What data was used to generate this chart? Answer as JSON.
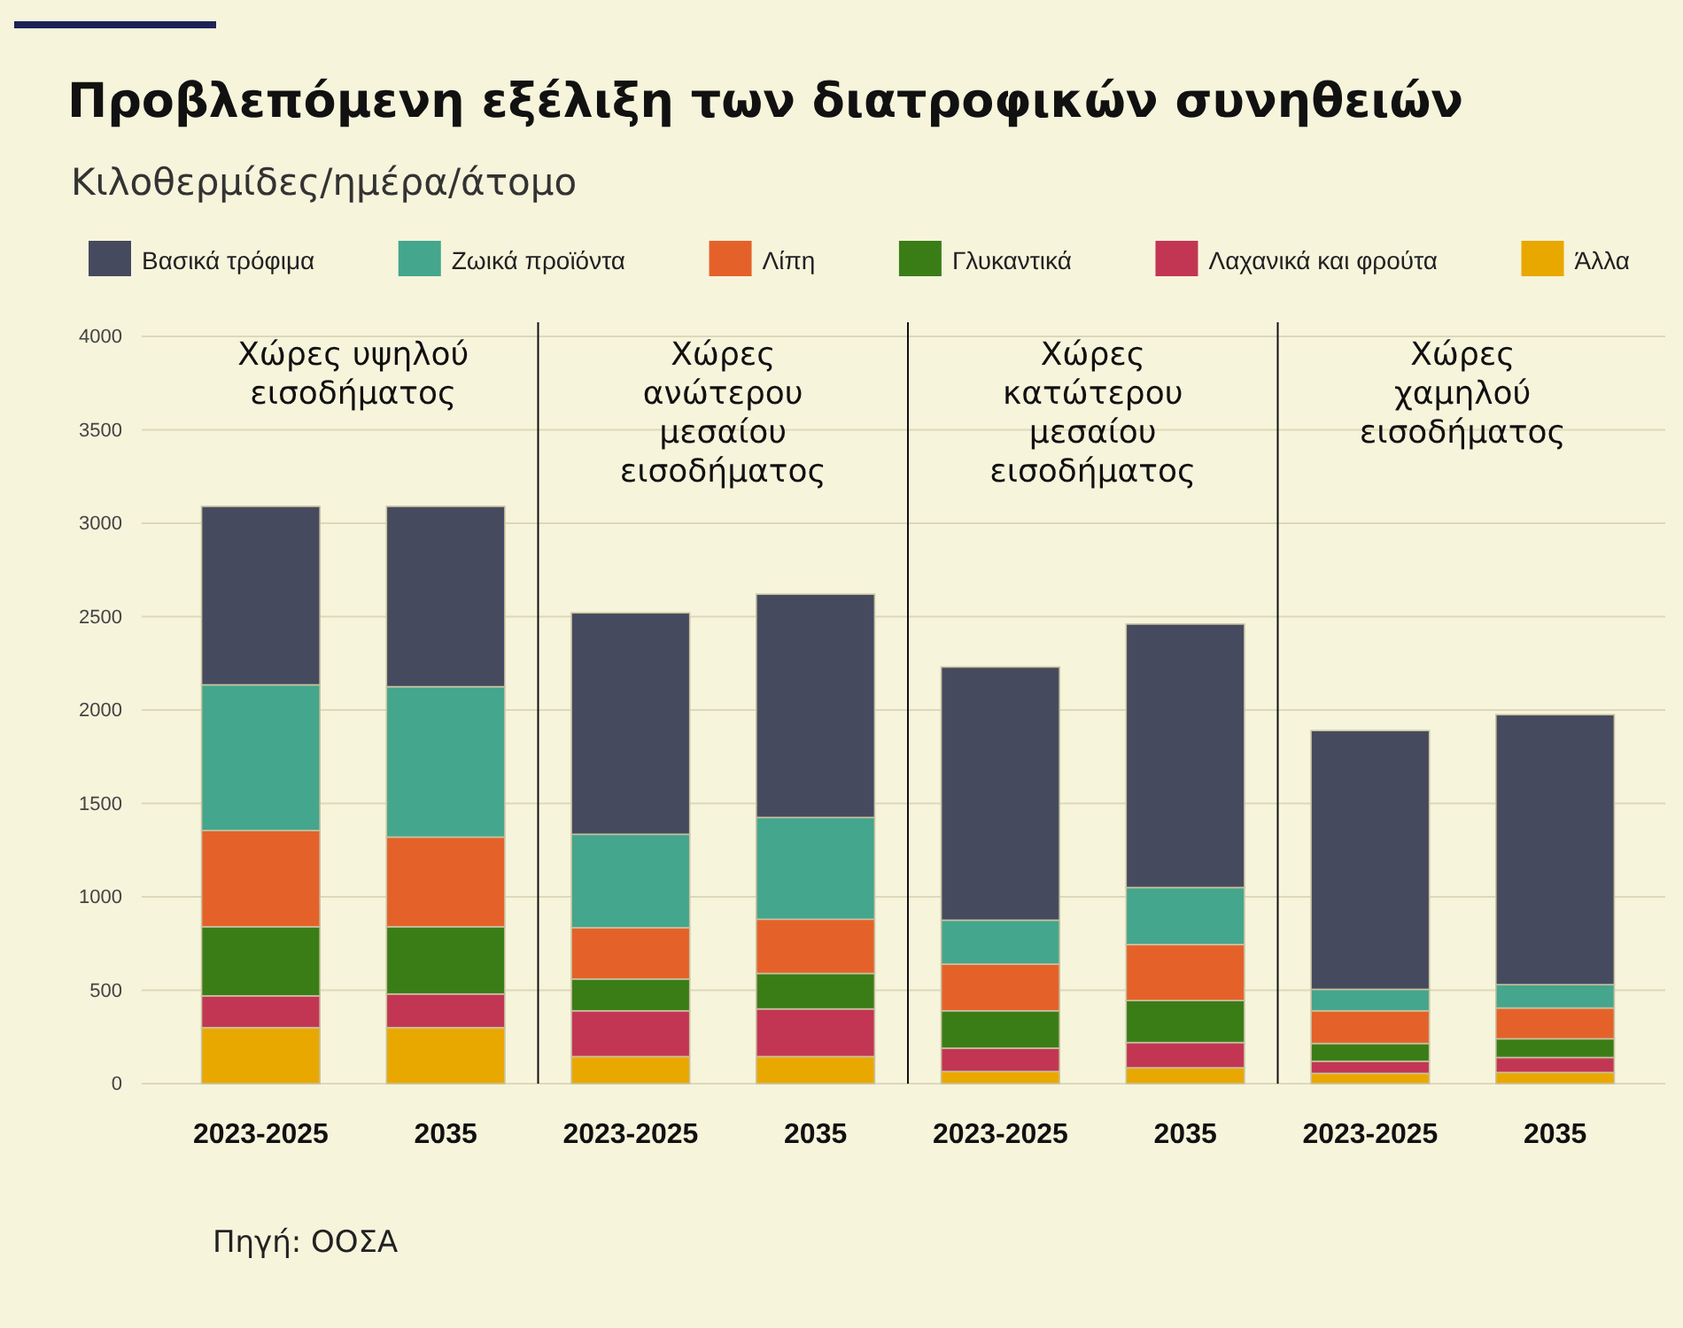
{
  "chart_data": {
    "type": "bar",
    "title": "Προβλεπόμενη εξέλιξη των διατροφικών συνηθειών",
    "subtitle": "Κιλοθερμίδες/ημέρα/άτομο",
    "categories": [
      "2023-2025",
      "2035",
      "2023-2025",
      "2035",
      "2023-2025",
      "2035",
      "2023-2025",
      "2035"
    ],
    "stacked": true,
    "series": [
      {
        "name": "Άλλα",
        "color": "#e9a800",
        "values": [
          300,
          300,
          145,
          145,
          65,
          85,
          55,
          60
        ]
      },
      {
        "name": "Λαχανικά και φρούτα",
        "color": "#c23654",
        "values": [
          170,
          180,
          245,
          255,
          125,
          135,
          65,
          80
        ]
      },
      {
        "name": "Γλυκαντικά",
        "color": "#3a7d17",
        "values": [
          370,
          360,
          170,
          190,
          200,
          225,
          95,
          100
        ]
      },
      {
        "name": "Λίπη",
        "color": "#e4622a",
        "values": [
          515,
          480,
          275,
          290,
          250,
          300,
          175,
          165
        ]
      },
      {
        "name": "Ζωικά προϊόντα",
        "color": "#44a68c",
        "values": [
          780,
          805,
          500,
          545,
          235,
          305,
          115,
          125
        ]
      },
      {
        "name": "Βασικά τρόφιμα",
        "color": "#454a5e",
        "values": [
          955,
          965,
          1185,
          1195,
          1355,
          1410,
          1385,
          1445
        ]
      }
    ],
    "ylim": [
      0,
      4000
    ],
    "yticks": [
      0,
      500,
      1000,
      1500,
      2000,
      2500,
      3000,
      3500,
      4000
    ],
    "grid": "y",
    "legend": "top",
    "annotations": [
      "Χώρες υψηλού εισοδήματος",
      "Χώρες ανώτερου μεσαίου εισοδήματος",
      "Χώρες κατώτερου μεσαίου εισοδήματος",
      "Χώρες χαμηλού εισοδήματος",
      "Πηγή: ΟΟΣΑ"
    ]
  }
}
